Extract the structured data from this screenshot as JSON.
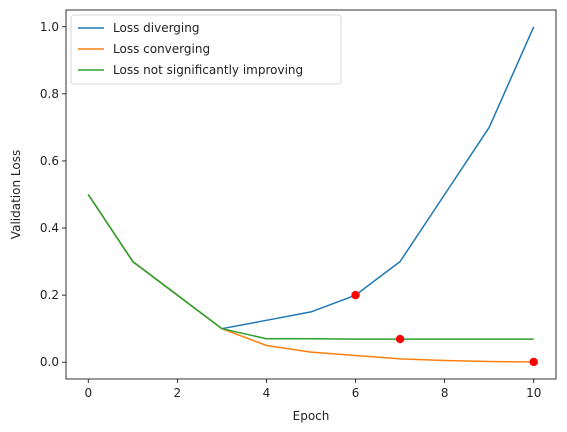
{
  "chart_data": {
    "type": "line",
    "title": "",
    "xlabel": "Epoch",
    "ylabel": "Validation Loss",
    "xlim": [
      -0.5,
      10.5
    ],
    "ylim": [
      -0.05,
      1.05
    ],
    "xticks": [
      0,
      2,
      4,
      6,
      8,
      10
    ],
    "yticks": [
      0.0,
      0.2,
      0.4,
      0.6,
      0.8,
      1.0
    ],
    "grid": false,
    "legend_position": "top-left",
    "series": [
      {
        "name": "Loss diverging",
        "color": "#1f77b4",
        "x": [
          0,
          1,
          2,
          3,
          4,
          5,
          6,
          7,
          8,
          9,
          10
        ],
        "y": [
          0.5,
          0.3,
          0.2,
          0.1,
          0.125,
          0.15,
          0.2,
          0.3,
          0.5,
          0.7,
          1.0
        ]
      },
      {
        "name": "Loss converging",
        "color": "#ff7f0e",
        "x": [
          0,
          1,
          2,
          3,
          4,
          5,
          6,
          7,
          8,
          9,
          10
        ],
        "y": [
          0.5,
          0.3,
          0.2,
          0.1,
          0.05,
          0.03,
          0.02,
          0.01,
          0.005,
          0.002,
          0.001
        ]
      },
      {
        "name": "Loss not significantly improving",
        "color": "#2ca02c",
        "x": [
          0,
          1,
          2,
          3,
          4,
          5,
          6,
          7,
          8,
          9,
          10
        ],
        "y": [
          0.5,
          0.3,
          0.2,
          0.1,
          0.07,
          0.07,
          0.069,
          0.069,
          0.069,
          0.069,
          0.069
        ]
      }
    ],
    "markers": [
      {
        "x": 6,
        "y": 0.2,
        "color": "#ff0000"
      },
      {
        "x": 7,
        "y": 0.069,
        "color": "#ff0000"
      },
      {
        "x": 10,
        "y": 0.001,
        "color": "#ff0000"
      }
    ]
  }
}
